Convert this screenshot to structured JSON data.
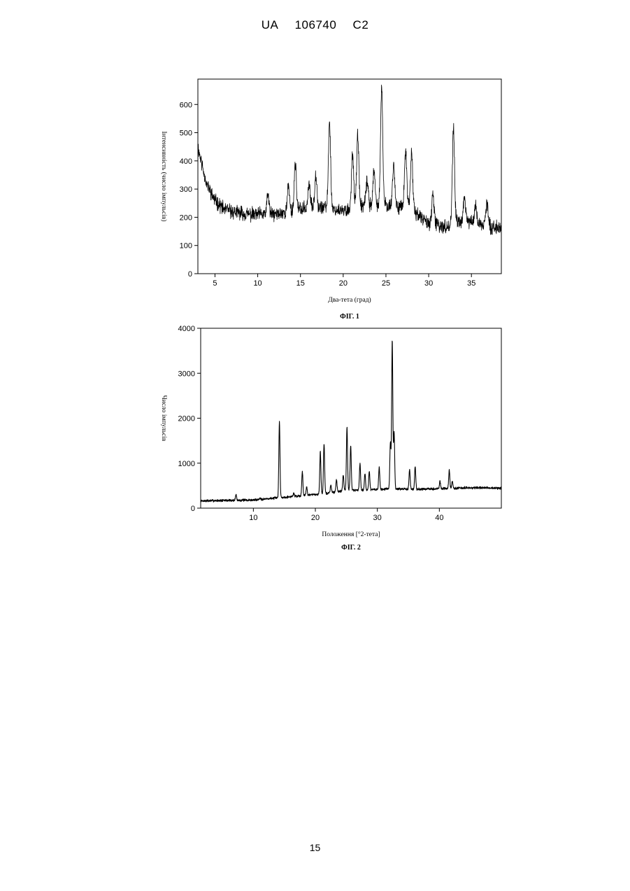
{
  "header": {
    "country": "UA",
    "number": "106740",
    "kind": "C2"
  },
  "page_number": "15",
  "chart_data": [
    {
      "type": "line",
      "caption": "ФІГ. 1",
      "xlabel": "Два-тета (град)",
      "ylabel": "Інтенсивність (число імпульсів)",
      "xlim": [
        3,
        38.5
      ],
      "ylim": [
        0,
        690
      ],
      "xticks": [
        5,
        10,
        15,
        20,
        25,
        30,
        35
      ],
      "yticks": [
        0,
        100,
        200,
        300,
        400,
        500,
        600
      ],
      "grid": false,
      "baseline": [
        [
          3,
          450
        ],
        [
          4,
          320
        ],
        [
          5,
          260
        ],
        [
          6,
          230
        ],
        [
          7,
          220
        ],
        [
          9,
          210
        ],
        [
          12,
          210
        ],
        [
          14,
          220
        ],
        [
          16,
          235
        ],
        [
          18,
          235
        ],
        [
          20,
          220
        ],
        [
          22,
          240
        ],
        [
          24,
          245
        ],
        [
          26,
          240
        ],
        [
          28,
          235
        ],
        [
          29,
          200
        ],
        [
          30,
          180
        ],
        [
          32,
          165
        ],
        [
          34,
          190
        ],
        [
          36,
          175
        ],
        [
          38.5,
          160
        ]
      ],
      "peaks": [
        {
          "x": 11.2,
          "y": 280
        },
        {
          "x": 13.6,
          "y": 310
        },
        {
          "x": 14.4,
          "y": 395
        },
        {
          "x": 16.0,
          "y": 320
        },
        {
          "x": 16.8,
          "y": 355
        },
        {
          "x": 18.4,
          "y": 540
        },
        {
          "x": 21.1,
          "y": 430
        },
        {
          "x": 21.7,
          "y": 490
        },
        {
          "x": 22.8,
          "y": 330
        },
        {
          "x": 23.6,
          "y": 360
        },
        {
          "x": 24.5,
          "y": 655
        },
        {
          "x": 25.9,
          "y": 385
        },
        {
          "x": 27.3,
          "y": 435
        },
        {
          "x": 28.0,
          "y": 430
        },
        {
          "x": 30.5,
          "y": 275
        },
        {
          "x": 32.9,
          "y": 515
        },
        {
          "x": 34.2,
          "y": 265
        },
        {
          "x": 35.5,
          "y": 240
        },
        {
          "x": 36.8,
          "y": 250
        }
      ]
    },
    {
      "type": "line",
      "caption": "ФІГ. 2",
      "xlabel": "Положення [°2-тета]",
      "ylabel": "Число імпульсів",
      "xlim": [
        1.5,
        50
      ],
      "ylim": [
        0,
        4000
      ],
      "xticks": [
        10,
        20,
        30,
        40
      ],
      "yticks": [
        0,
        1000,
        2000,
        3000,
        4000
      ],
      "grid": false,
      "baseline": [
        [
          1.5,
          160
        ],
        [
          5,
          170
        ],
        [
          10,
          180
        ],
        [
          14,
          230
        ],
        [
          18,
          280
        ],
        [
          22,
          330
        ],
        [
          25,
          400
        ],
        [
          28,
          400
        ],
        [
          32,
          430
        ],
        [
          36,
          420
        ],
        [
          40,
          430
        ],
        [
          44,
          450
        ],
        [
          48,
          450
        ],
        [
          50,
          440
        ]
      ],
      "peaks": [
        {
          "x": 7.2,
          "y": 300
        },
        {
          "x": 11.1,
          "y": 230
        },
        {
          "x": 14.2,
          "y": 1920
        },
        {
          "x": 16.5,
          "y": 330
        },
        {
          "x": 17.9,
          "y": 820
        },
        {
          "x": 18.6,
          "y": 480
        },
        {
          "x": 20.8,
          "y": 1250
        },
        {
          "x": 21.4,
          "y": 1450
        },
        {
          "x": 22.5,
          "y": 520
        },
        {
          "x": 23.4,
          "y": 640
        },
        {
          "x": 24.5,
          "y": 750
        },
        {
          "x": 25.1,
          "y": 1800
        },
        {
          "x": 25.7,
          "y": 1400
        },
        {
          "x": 27.2,
          "y": 1000
        },
        {
          "x": 28.0,
          "y": 780
        },
        {
          "x": 28.7,
          "y": 830
        },
        {
          "x": 30.3,
          "y": 900
        },
        {
          "x": 32.1,
          "y": 1450
        },
        {
          "x": 32.4,
          "y": 3720
        },
        {
          "x": 32.7,
          "y": 1700
        },
        {
          "x": 35.2,
          "y": 860
        },
        {
          "x": 36.1,
          "y": 930
        },
        {
          "x": 40.1,
          "y": 600
        },
        {
          "x": 41.6,
          "y": 850
        },
        {
          "x": 42.1,
          "y": 600
        }
      ]
    }
  ]
}
